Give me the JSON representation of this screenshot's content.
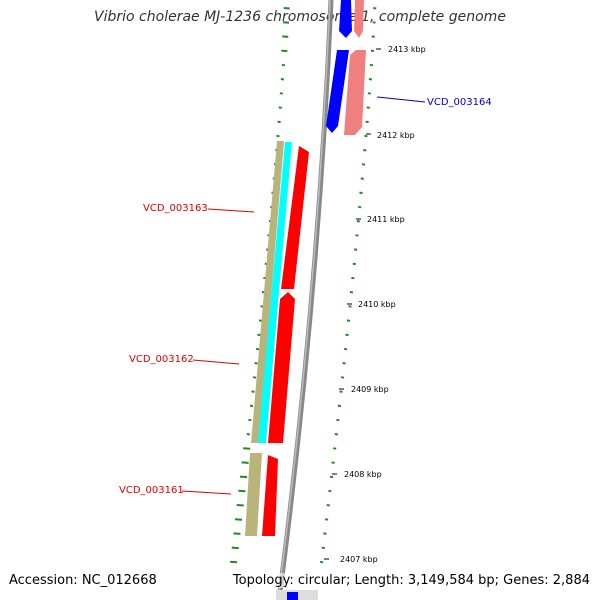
{
  "title": "Vibrio cholerae MJ-1236 chromosome 1, complete genome",
  "accession": "Accession: NC_012668",
  "topology": "Topology: circular; Length: 3,149,584 bp; Genes: 2,884",
  "ticks": [
    "2413 kbp",
    "2412 kbp",
    "2411 kbp",
    "2410 kbp",
    "2409 kbp",
    "2408 kbp",
    "2407 kbp"
  ],
  "genes": [
    {
      "id": "VCD_003164",
      "color": "#0000cc"
    },
    {
      "id": "VCD_003163",
      "color": "#dd0000"
    },
    {
      "id": "VCD_003162",
      "color": "#dd0000"
    },
    {
      "id": "VCD_003161",
      "color": "#dd0000"
    }
  ],
  "colors": {
    "forward_cds": "#ff0000",
    "reverse_cds": "#0000ff",
    "forward_cds_light": "#f08080",
    "reverse_cds_light": "#aaaaff",
    "trna": "#b8b47a",
    "rrna": "#00ffff",
    "backbone": "#777777",
    "gc_skew_ticks": "#228b22"
  }
}
